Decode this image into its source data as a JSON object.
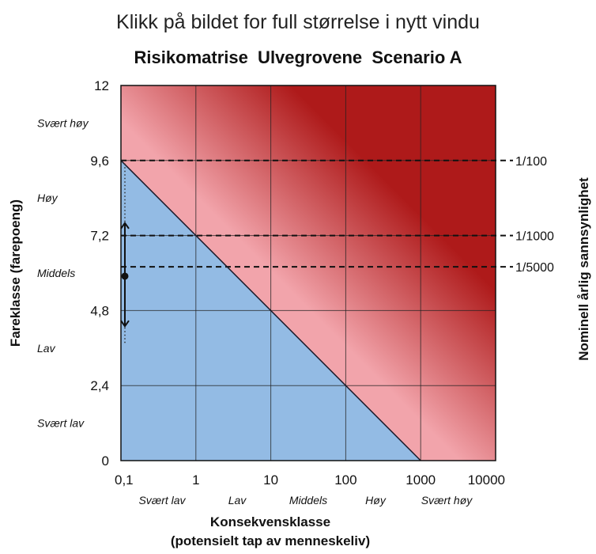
{
  "caption": "Klikk på bildet for full størrelse i nytt vindu",
  "colors": {
    "low_zone": "#93bbe4",
    "mid_zone": "#f2a4ab",
    "high_zone": "#ae1a1a",
    "grid": "#222222"
  },
  "chart_data": {
    "type": "area",
    "title": "Risikomatrise  Ulvegrovene  Scenario A",
    "xlabel": "Konsekvensklasse",
    "xlabel2": "(potensielt tap av menneskeliv)",
    "ylabel": "Fareklasse (farepoeng)",
    "y2label": "Nominell årlig sannsynlighet",
    "x_scale": "log",
    "xlim": [
      0.1,
      10000
    ],
    "ylim": [
      0,
      12
    ],
    "x_ticks": [
      "0,1",
      "1",
      "10",
      "100",
      "1000",
      "10000"
    ],
    "x_tick_values": [
      0.1,
      1,
      10,
      100,
      1000,
      10000
    ],
    "y_ticks": [
      "0",
      "2,4",
      "4,8",
      "7,2",
      "9,6",
      "12"
    ],
    "y_tick_values": [
      0,
      2.4,
      4.8,
      7.2,
      9.6,
      12
    ],
    "x_bands": [
      "Svært lav",
      "Lav",
      "Middels",
      "Høy",
      "Svært høy"
    ],
    "y_bands": [
      "Svært lav",
      "Lav",
      "Middels",
      "Høy",
      "Svært høy"
    ],
    "grid": true,
    "boundary_line": [
      {
        "x": 0.1,
        "y": 9.6
      },
      {
        "x": 1000,
        "y": 0
      }
    ],
    "probability_lines": [
      {
        "label": "1/100",
        "y": 9.6
      },
      {
        "label": "1/1000",
        "y": 7.2
      },
      {
        "label": "1/5000",
        "y": 6.2
      }
    ],
    "marker": {
      "x": 0.1,
      "y": 5.9,
      "range": [
        4.3,
        7.6
      ],
      "dotted_range": [
        3.7,
        9.5
      ]
    }
  }
}
